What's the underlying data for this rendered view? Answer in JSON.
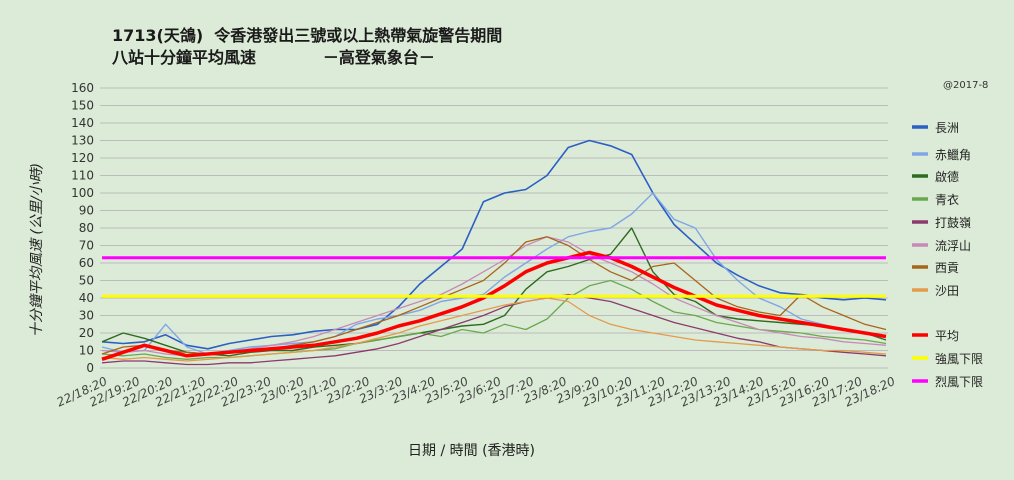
{
  "title": {
    "line1": "1713(天鴿)  令香港發出三號或以上熱帶氣旋警告期間",
    "line2": "八站十分鐘平均風速            －高登氣象台－"
  },
  "credit": "@2017-8",
  "chart_data": {
    "type": "line",
    "title": "1713(天鴿) 令香港發出三號或以上熱帶氣旋警告期間 八站十分鐘平均風速",
    "xlabel": "日期 / 時間 (香港時)",
    "ylabel": "十分鐘平均風速 (公里/小時)",
    "ylim": [
      0,
      160
    ],
    "y_ticks": [
      0,
      10,
      20,
      30,
      40,
      50,
      60,
      70,
      80,
      90,
      100,
      110,
      120,
      130,
      140,
      150,
      160
    ],
    "x_tick_labels": [
      "22/18:20",
      "22/19:20",
      "22/20:20",
      "22/21:20",
      "22/22:20",
      "22/23:20",
      "23/0:20",
      "23/1:20",
      "23/2:20",
      "23/3:20",
      "23/4:20",
      "23/5:20",
      "23/6:20",
      "23/7:20",
      "23/8:20",
      "23/9:20",
      "23/10:20",
      "23/11:20",
      "23/12:20",
      "23/13:20",
      "23/14:20",
      "23/15:20",
      "23/16:20",
      "23/17:20",
      "23/18:20"
    ],
    "grid": true,
    "legend_position": "right",
    "series": [
      {
        "name": "長洲",
        "color": "#2b5fc4",
        "width": 1.6,
        "values": [
          15,
          14,
          15,
          19,
          13,
          11,
          14,
          16,
          18,
          19,
          21,
          22,
          22,
          25,
          35,
          48,
          58,
          68,
          95,
          100,
          102,
          110,
          126,
          130,
          127,
          122,
          100,
          82,
          71,
          60,
          53,
          47,
          43,
          42,
          40,
          39,
          40,
          39
        ]
      },
      {
        "name": "赤鱲角",
        "color": "#7fa6e6",
        "width": 1.4,
        "values": [
          12,
          9,
          10,
          25,
          12,
          8,
          10,
          12,
          13,
          14,
          15,
          18,
          25,
          28,
          30,
          33,
          38,
          40,
          42,
          52,
          60,
          68,
          75,
          78,
          80,
          88,
          100,
          85,
          80,
          62,
          50,
          40,
          35,
          28,
          25,
          22,
          20,
          18
        ]
      },
      {
        "name": "啟德",
        "color": "#2f6b1f",
        "width": 1.4,
        "values": [
          15,
          20,
          17,
          13,
          9,
          8,
          7,
          9,
          10,
          10,
          12,
          13,
          14,
          16,
          18,
          20,
          22,
          24,
          25,
          30,
          45,
          55,
          58,
          62,
          65,
          80,
          55,
          42,
          38,
          30,
          28,
          27,
          26,
          25,
          24,
          22,
          20,
          16
        ]
      },
      {
        "name": "青衣",
        "color": "#6aa84f",
        "width": 1.3,
        "values": [
          8,
          7,
          8,
          6,
          5,
          6,
          6,
          7,
          8,
          9,
          10,
          11,
          14,
          16,
          18,
          20,
          18,
          22,
          20,
          25,
          22,
          28,
          40,
          47,
          50,
          45,
          38,
          32,
          30,
          26,
          24,
          22,
          21,
          20,
          18,
          17,
          16,
          14
        ]
      },
      {
        "name": "打鼓嶺",
        "color": "#8a3a6e",
        "width": 1.3,
        "values": [
          3,
          4,
          4,
          3,
          2,
          2,
          3,
          3,
          4,
          5,
          6,
          7,
          9,
          11,
          14,
          18,
          22,
          26,
          30,
          35,
          38,
          40,
          42,
          40,
          38,
          34,
          30,
          26,
          23,
          20,
          17,
          15,
          12,
          11,
          10,
          9,
          8,
          7
        ]
      },
      {
        "name": "流浮山",
        "color": "#c78ab8",
        "width": 1.3,
        "values": [
          10,
          9,
          10,
          8,
          7,
          8,
          9,
          11,
          13,
          15,
          18,
          22,
          26,
          30,
          34,
          38,
          42,
          48,
          55,
          62,
          70,
          75,
          72,
          65,
          60,
          55,
          48,
          40,
          35,
          30,
          26,
          22,
          20,
          18,
          17,
          15,
          14,
          13
        ]
      },
      {
        "name": "西貢",
        "color": "#a8651a",
        "width": 1.3,
        "values": [
          8,
          12,
          13,
          10,
          9,
          8,
          9,
          10,
          11,
          13,
          15,
          18,
          22,
          26,
          30,
          35,
          40,
          45,
          50,
          60,
          72,
          75,
          70,
          62,
          55,
          50,
          58,
          60,
          50,
          40,
          35,
          32,
          30,
          42,
          35,
          30,
          25,
          22
        ]
      },
      {
        "name": "沙田",
        "color": "#e39b4c",
        "width": 1.3,
        "values": [
          6,
          5,
          6,
          5,
          4,
          5,
          6,
          7,
          8,
          9,
          10,
          12,
          14,
          17,
          20,
          24,
          27,
          30,
          33,
          36,
          38,
          40,
          38,
          30,
          25,
          22,
          20,
          18,
          16,
          15,
          14,
          13,
          12,
          11,
          10,
          10,
          9,
          8
        ]
      },
      {
        "name": "平均",
        "color": "#ff0000",
        "width": 3.5,
        "values": [
          5,
          9,
          13,
          10,
          7,
          8,
          9,
          10,
          11,
          12,
          13,
          15,
          17,
          20,
          24,
          27,
          31,
          35,
          40,
          47,
          55,
          60,
          63,
          66,
          63,
          58,
          52,
          46,
          41,
          36,
          33,
          30,
          28,
          26,
          24,
          22,
          20,
          18
        ]
      },
      {
        "name": "強風下限",
        "color": "#ffff00",
        "width": 3,
        "values": [
          41,
          41
        ]
      },
      {
        "name": "烈風下限",
        "color": "#ff00ff",
        "width": 3,
        "values": [
          63,
          63
        ]
      }
    ],
    "x_positions_note": "series with 38 values span 22/18:20 to 23/18:20 evenly; threshold series are constant across the full x range"
  }
}
